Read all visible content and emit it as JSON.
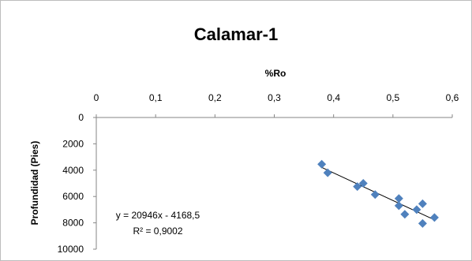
{
  "chart_data": {
    "type": "scatter",
    "title": "Calamar-1",
    "xlabel": "%Ro",
    "ylabel": "Profundidad (Pies)",
    "xlim": [
      0,
      0.6
    ],
    "ylim": [
      0,
      10000
    ],
    "y_axis_reversed": true,
    "x_axis_position": "top",
    "x_ticks": [
      "0",
      "0,1",
      "0,2",
      "0,3",
      "0,4",
      "0,5",
      "0,6"
    ],
    "y_ticks": [
      "0",
      "2000",
      "4000",
      "6000",
      "8000",
      "10000"
    ],
    "grid": false,
    "legend": "none",
    "marker_color": "#4f81bd",
    "trendline_color": "#000000",
    "points": [
      {
        "x": 0.38,
        "y": 3550
      },
      {
        "x": 0.39,
        "y": 4200
      },
      {
        "x": 0.44,
        "y": 5250
      },
      {
        "x": 0.45,
        "y": 5000
      },
      {
        "x": 0.47,
        "y": 5850
      },
      {
        "x": 0.51,
        "y": 6150
      },
      {
        "x": 0.51,
        "y": 6700
      },
      {
        "x": 0.52,
        "y": 7350
      },
      {
        "x": 0.54,
        "y": 7000
      },
      {
        "x": 0.55,
        "y": 6550
      },
      {
        "x": 0.55,
        "y": 8050
      },
      {
        "x": 0.57,
        "y": 7600
      }
    ],
    "trendline": {
      "x_range": [
        0.38,
        0.57
      ],
      "slope": 20946,
      "intercept": -4168.5,
      "equation_text": "y = 20946x - 4168,5",
      "r2_text": "R² = 0,9002"
    }
  }
}
